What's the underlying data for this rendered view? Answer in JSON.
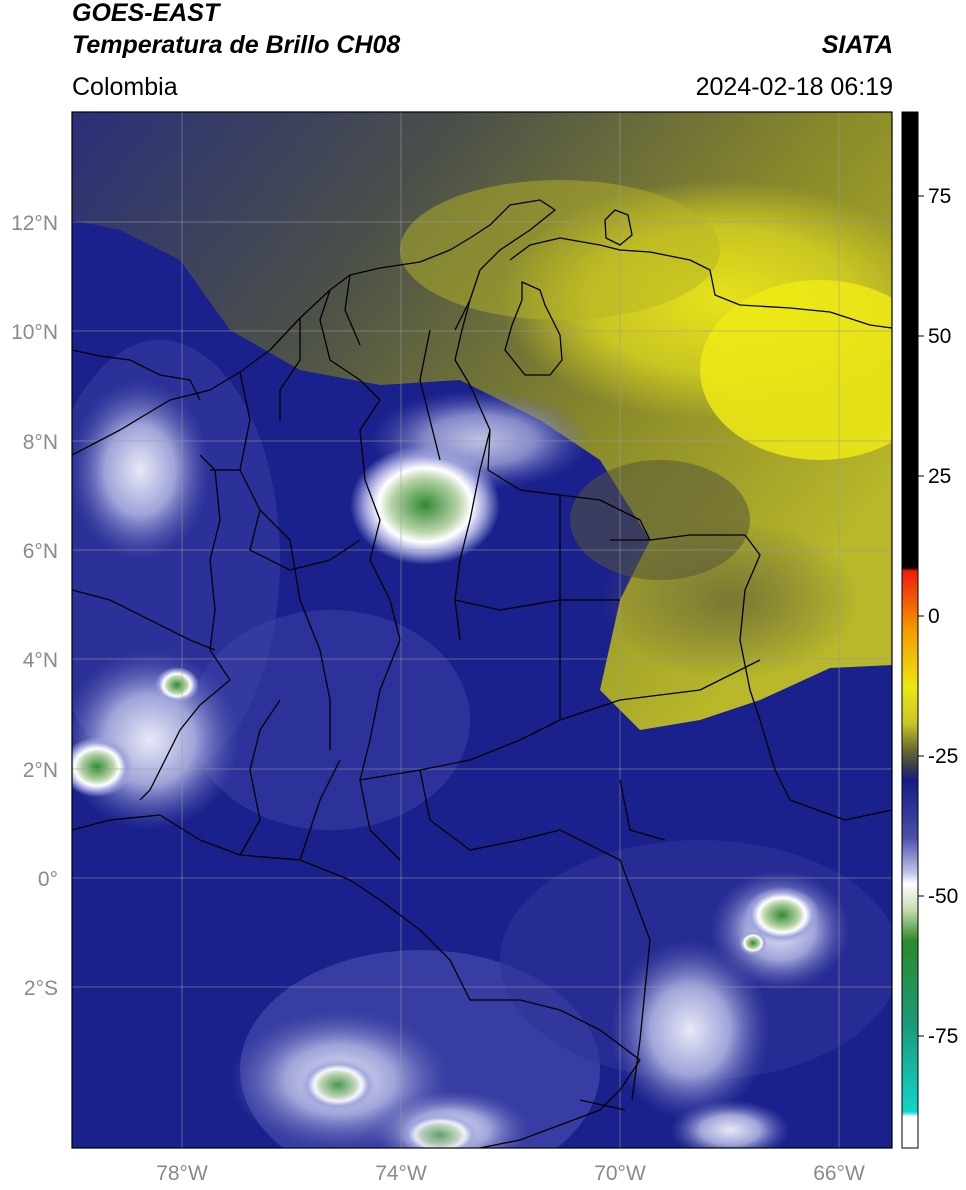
{
  "header": {
    "satellite": "GOES-EAST",
    "product": "Temperatura de Brillo CH08",
    "source": "SIATA",
    "region": "Colombia",
    "datetime": "2024-02-18 06:19"
  },
  "map": {
    "lat_labels": [
      "12°N",
      "10°N",
      "8°N",
      "6°N",
      "4°N",
      "2°N",
      "0°",
      "2°S"
    ],
    "lon_labels": [
      "78°W",
      "74°W",
      "70°W",
      "66°W"
    ],
    "lat_range": [
      -5,
      14
    ],
    "lon_range": [
      -80,
      -64
    ]
  },
  "colorbar": {
    "range": [
      -95,
      90
    ],
    "tick_labels": [
      "75",
      "50",
      "25",
      "0",
      "-25",
      "-50",
      "-75"
    ],
    "colors": {
      "warm_black": "#000000",
      "red": "#ee1c0c",
      "orange": "#f59a00",
      "yellow": "#ece812",
      "olive": "#6e6b2e",
      "navy": "#161c86",
      "lavender": "#c4c6ec",
      "white": "#ffffff",
      "green": "#2e8a2a",
      "cyan": "#11d5c9"
    }
  }
}
